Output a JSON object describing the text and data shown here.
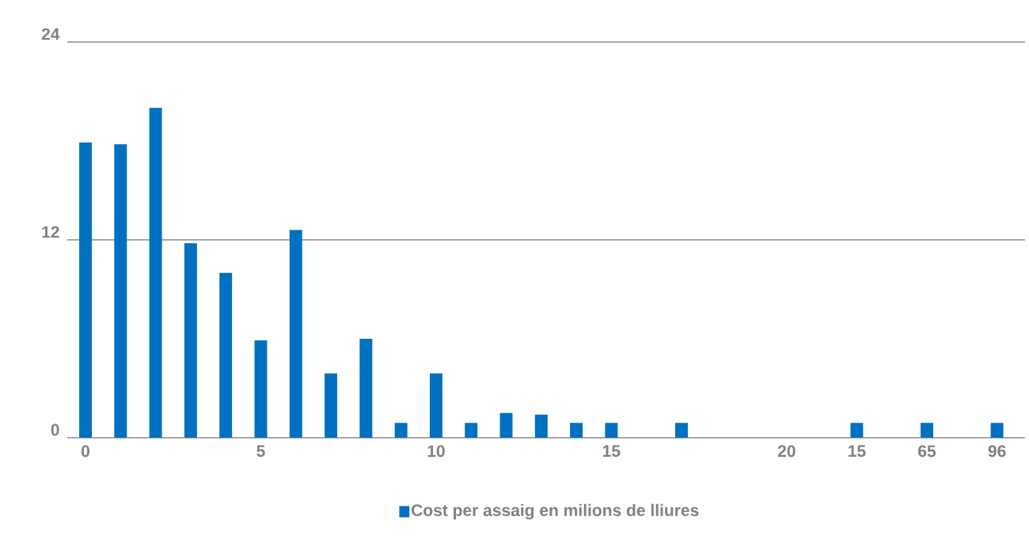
{
  "chart_data": {
    "type": "bar",
    "categories": [
      "0",
      null,
      null,
      null,
      null,
      "5",
      null,
      null,
      null,
      null,
      "10",
      null,
      null,
      null,
      null,
      "15",
      null,
      null,
      null,
      null,
      "20",
      null,
      "15",
      null,
      "65",
      null,
      "96"
    ],
    "series": [
      {
        "name": "Cost per assaig en milions de lliures",
        "color": "#0070c0",
        "values": [
          17.9,
          17.8,
          20.0,
          11.8,
          10.0,
          5.9,
          12.6,
          3.9,
          6.0,
          0.9,
          3.9,
          0.9,
          1.5,
          1.4,
          0.9,
          0.9,
          null,
          0.9,
          null,
          null,
          null,
          null,
          0.9,
          null,
          0.9,
          null,
          0.9
        ]
      }
    ],
    "ylim": [
      0,
      24
    ],
    "yticks": [
      0,
      12,
      24
    ],
    "grid": "y",
    "legend": "bottom"
  }
}
